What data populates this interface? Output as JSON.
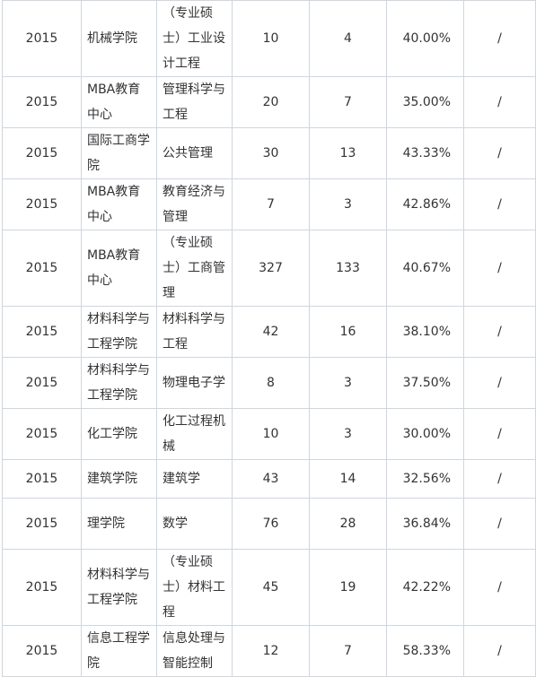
{
  "rows": [
    {
      "year": "2015",
      "school": "机械学院",
      "major": "（专业硕士）工业设计工程",
      "applied": "10",
      "admitted": "4",
      "rate": "40.00%",
      "note": "/"
    },
    {
      "year": "2015",
      "school": "MBA教育中心",
      "major": "管理科学与工程",
      "applied": "20",
      "admitted": "7",
      "rate": "35.00%",
      "note": "/"
    },
    {
      "year": "2015",
      "school": "国际工商学院",
      "major": "公共管理",
      "applied": "30",
      "admitted": "13",
      "rate": "43.33%",
      "note": "/"
    },
    {
      "year": "2015",
      "school": "MBA教育中心",
      "major": "教育经济与管理",
      "applied": "7",
      "admitted": "3",
      "rate": "42.86%",
      "note": "/"
    },
    {
      "year": "2015",
      "school": "MBA教育中心",
      "major": "（专业硕士）工商管理",
      "applied": "327",
      "admitted": "133",
      "rate": "40.67%",
      "note": "/"
    },
    {
      "year": "2015",
      "school": "材料科学与工程学院",
      "major": "材料科学与工程",
      "applied": "42",
      "admitted": "16",
      "rate": "38.10%",
      "note": "/"
    },
    {
      "year": "2015",
      "school": "材料科学与工程学院",
      "major": "物理电子学",
      "applied": "8",
      "admitted": "3",
      "rate": "37.50%",
      "note": "/"
    },
    {
      "year": "2015",
      "school": "化工学院",
      "major": "化工过程机械",
      "applied": "10",
      "admitted": "3",
      "rate": "30.00%",
      "note": "/"
    },
    {
      "year": "2015",
      "school": "建筑学院",
      "major": "建筑学",
      "applied": "43",
      "admitted": "14",
      "rate": "32.56%",
      "note": "/"
    },
    {
      "year": "2015",
      "school": "理学院",
      "major": "数学",
      "applied": "76",
      "admitted": "28",
      "rate": "36.84%",
      "note": "/"
    },
    {
      "year": "2015",
      "school": "材料科学与工程学院",
      "major": "（专业硕士）材料工程",
      "applied": "45",
      "admitted": "19",
      "rate": "42.22%",
      "note": "/"
    },
    {
      "year": "2015",
      "school": "信息工程学院",
      "major": "信息处理与智能控制",
      "applied": "12",
      "admitted": "7",
      "rate": "58.33%",
      "note": "/"
    }
  ]
}
